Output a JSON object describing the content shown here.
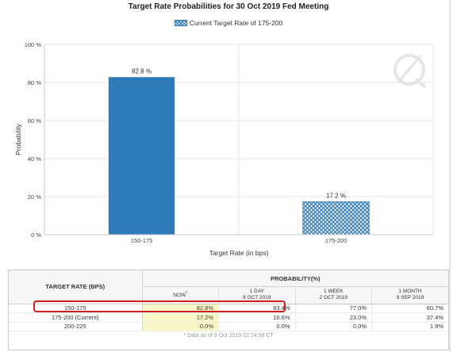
{
  "chart_data": {
    "type": "bar",
    "title": "Target Rate Probabilities for 30 Oct 2019 Fed Meeting",
    "legend": {
      "label": "Current Target Rate of 175-200",
      "placement": "top-center"
    },
    "xlabel": "Target Rate (in bps)",
    "ylabel": "Probability",
    "ylim": [
      0,
      100
    ],
    "yticks": [
      0,
      20,
      40,
      60,
      80,
      100
    ],
    "ytick_labels": [
      "0 %",
      "20 %",
      "40 %",
      "60 %",
      "80 %",
      "100 %"
    ],
    "categories": [
      "150-175",
      "175-200"
    ],
    "values": [
      82.8,
      17.2
    ],
    "data_labels": [
      "82.8 %",
      "17.2 %"
    ],
    "bar_styles": [
      "solid",
      "crosshatch"
    ],
    "colors": {
      "bar": "#2f7ab8",
      "grid": "#e6e6e6"
    },
    "grid": true
  },
  "table": {
    "target_header": "TARGET RATE (BPS)",
    "probability_header": "PROBABILITY(%)",
    "columns": [
      {
        "line1": "NOW",
        "marker": "*",
        "line2": ""
      },
      {
        "line1": "1 DAY",
        "marker": "",
        "line2": "8 OCT 2019"
      },
      {
        "line1": "1 WEEK",
        "marker": "",
        "line2": "2 OCT 2019"
      },
      {
        "line1": "1 MONTH",
        "marker": "",
        "line2": "9 SEP 2019"
      }
    ],
    "rows": [
      {
        "label": "150-175",
        "cells": [
          "82.8%",
          "83.4%",
          "77.0%",
          "60.7%"
        ]
      },
      {
        "label": "175-200 (Current)",
        "cells": [
          "17.2%",
          "16.6%",
          "23.0%",
          "37.4%"
        ]
      },
      {
        "label": "200-225",
        "cells": [
          "0.0%",
          "0.0%",
          "0.0%",
          "1.9%"
        ]
      }
    ],
    "footnote": "* Data as of 9 Oct 2019 02:24:58 CT",
    "highlight_color": "#cc1f1f",
    "now_column_color": "#fbf8c7"
  }
}
